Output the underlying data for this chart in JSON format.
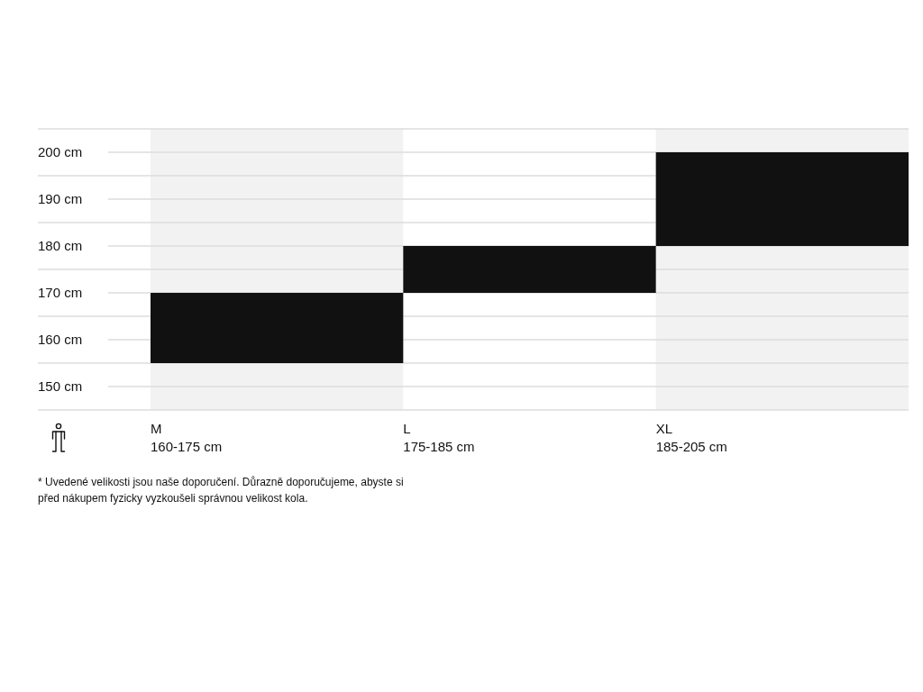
{
  "chart_data": {
    "type": "bar",
    "categories": [
      "M\n160-175 cm",
      "L\n175-185 cm",
      "XL\n185-205 cm"
    ],
    "base": [
      155,
      170,
      180
    ],
    "values": [
      15,
      10,
      20
    ],
    "color": "#111111",
    "ylim": [
      145,
      205
    ],
    "yticks": [
      {
        "value": 145,
        "label": null
      },
      {
        "value": 150,
        "label": "150 cm"
      },
      {
        "value": 155,
        "label": null
      },
      {
        "value": 160,
        "label": "160 cm"
      },
      {
        "value": 165,
        "label": null
      },
      {
        "value": 170,
        "label": "170 cm"
      },
      {
        "value": 175,
        "label": null
      },
      {
        "value": 180,
        "label": "180 cm"
      },
      {
        "value": 185,
        "label": null
      },
      {
        "value": 190,
        "label": "190 cm"
      },
      {
        "value": 195,
        "label": null
      },
      {
        "value": 200,
        "label": "200 cm"
      },
      {
        "value": 205,
        "label": null
      }
    ],
    "grid": "y",
    "annotations": [
      "* Uvedené velikosti jsou naše doporučení. Důrazně doporučujeme, abyste si\npřed nákupem fyzicky vyzkoušeli správnou velikost kola."
    ]
  }
}
